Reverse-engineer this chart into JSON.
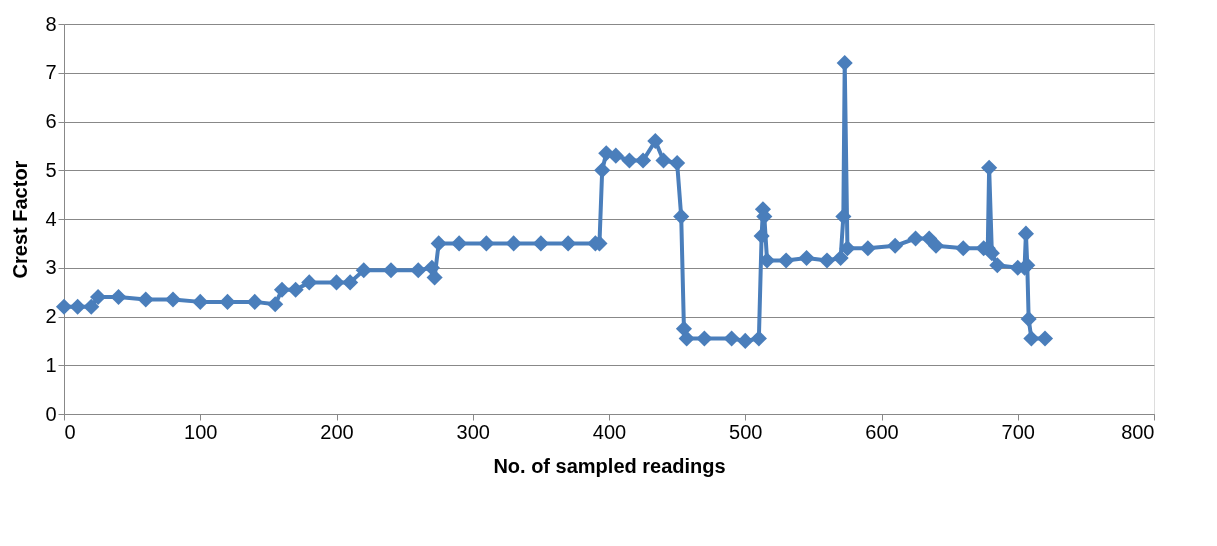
{
  "chart_data": {
    "type": "line",
    "xlabel": "No. of sampled readings",
    "ylabel": "Crest Factor",
    "xlim": [
      0,
      800
    ],
    "xticks": [
      0,
      100,
      200,
      300,
      400,
      500,
      600,
      700,
      800
    ],
    "ylim": [
      0,
      8
    ],
    "yticks": [
      0,
      1,
      2,
      3,
      4,
      5,
      6,
      7,
      8
    ],
    "grid": "y",
    "legend": false,
    "marker": "diamond",
    "line_style": "solid",
    "x": [
      0,
      10,
      20,
      25,
      40,
      60,
      80,
      100,
      120,
      140,
      155,
      160,
      170,
      180,
      200,
      210,
      220,
      240,
      260,
      270,
      272,
      275,
      290,
      310,
      330,
      350,
      370,
      390,
      393,
      395,
      398,
      405,
      415,
      425,
      434,
      440,
      450,
      453,
      455,
      457,
      470,
      490,
      500,
      510,
      512,
      513,
      514,
      516,
      530,
      545,
      560,
      570,
      572,
      573,
      575,
      590,
      610,
      625,
      635,
      640,
      660,
      675,
      678,
      679,
      681,
      685,
      700,
      705,
      706,
      707,
      708,
      710,
      720
    ],
    "series": [
      {
        "color": "#4a7ebb",
        "values": [
          2.2,
          2.2,
          2.2,
          2.4,
          2.4,
          2.35,
          2.35,
          2.3,
          2.3,
          2.3,
          2.25,
          2.55,
          2.55,
          2.7,
          2.7,
          2.7,
          2.95,
          2.95,
          2.95,
          3.0,
          2.8,
          3.5,
          3.5,
          3.5,
          3.5,
          3.5,
          3.5,
          3.5,
          3.5,
          5.0,
          5.35,
          5.3,
          5.2,
          5.2,
          5.6,
          5.2,
          5.15,
          4.05,
          1.75,
          1.55,
          1.55,
          1.55,
          1.5,
          1.55,
          3.65,
          4.2,
          4.05,
          3.15,
          3.15,
          3.2,
          3.15,
          3.2,
          4.05,
          7.2,
          3.4,
          3.4,
          3.45,
          3.6,
          3.6,
          3.45,
          3.4,
          3.4,
          3.4,
          5.05,
          3.3,
          3.05,
          3.0,
          3.0,
          3.7,
          3.05,
          1.95,
          1.55,
          1.55
        ]
      }
    ]
  }
}
